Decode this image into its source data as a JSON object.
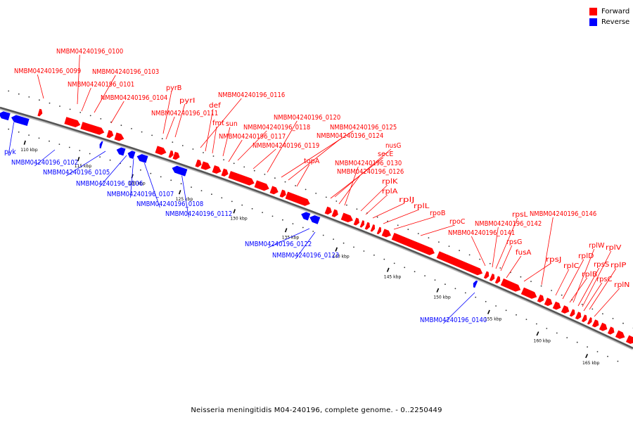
{
  "caption": "Neisseria meningitidis M04-240196, complete genome. - 0..2250449",
  "colors": {
    "forward": "#ff0000",
    "reverse": "#0000ff",
    "backbone": "#555555",
    "tick": "#000000"
  },
  "legend": [
    {
      "label": "Forward",
      "color": "#ff0000"
    },
    {
      "label": "Reverse",
      "color": "#0000ff"
    }
  ],
  "ruler": {
    "labels": [
      "110 kbp",
      "115 kbp",
      "120 kbp",
      "125 kbp",
      "130 kbp",
      "135 kbp",
      "140 kbp",
      "145 kbp",
      "150 kbp",
      "155 kbp",
      "160 kbp",
      "165 kbp"
    ]
  },
  "forward_labels": [
    "NMBM04240196_0100",
    "NMBM04240196_0099",
    "NMBM04240196_0103",
    "NMBM04240196_0101",
    "NMBM04240196_0104",
    "pyrB",
    "pyrI",
    "NMBM04240196_0111",
    "NMBM04240196_0116",
    "def",
    "fmt",
    "sun",
    "NMBM04240196_0120",
    "NMBM04240196_0118",
    "NMBM04240196_0125",
    "NMBM04240196_0117",
    "NMBM04240196_0124",
    "NMBM04240196_0119",
    "nusG",
    "secE",
    "topA",
    "NMBM04240196_0130",
    "NMBM04240196_0126",
    "rplK",
    "rplA",
    "rplJ",
    "rplL",
    "rpoB",
    "rpoC",
    "rpsL",
    "NMBM04240196_0146",
    "NMBM04240196_0142",
    "NMBM04240196_0141",
    "rpsG",
    "fusA",
    "rpsJ",
    "rplD",
    "rplW",
    "rplV",
    "rplC",
    "rpsS",
    "rplB",
    "rplP",
    "rpsC",
    "rplN"
  ],
  "reverse_labels": [
    "pyk",
    "NMBM04240196_0102",
    "NMBM04240196_0105",
    "NMBM04240196_0106",
    "NMBM04240196_0107",
    "NMBM04240196_0108",
    "NMBM04240196_0112",
    "NMBM04240196_0122",
    "NMBM04240196_0123",
    "NMBM04240196_0140"
  ]
}
